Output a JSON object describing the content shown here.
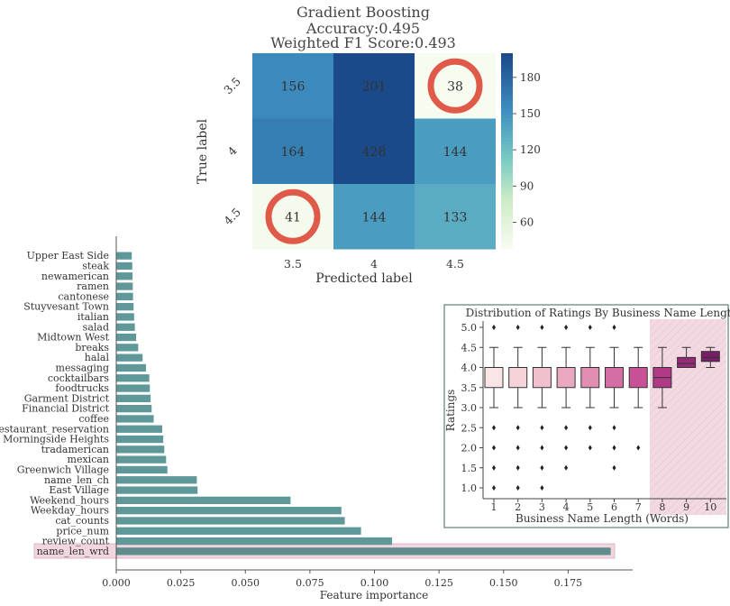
{
  "chart_data": [
    {
      "type": "heatmap",
      "title_lines": [
        "Gradient Boosting",
        "Accuracy:0.495",
        "Weighted F1 Score:0.493"
      ],
      "xlabel": "Predicted label",
      "ylabel": "True label",
      "x_categories": [
        "3.5",
        "4",
        "4.5"
      ],
      "y_categories": [
        "3.5",
        "4",
        "4.5"
      ],
      "values": [
        [
          156,
          201,
          38
        ],
        [
          164,
          428,
          144
        ],
        [
          41,
          144,
          133
        ]
      ],
      "colorbar_ticks": [
        180,
        150,
        120,
        90,
        60
      ],
      "colorbar_range": [
        38,
        200
      ],
      "highlighted_cells": [
        [
          0,
          2
        ],
        [
          2,
          0
        ]
      ],
      "colors": {
        "low": "#f7fcf0",
        "mid": "#7bccc4",
        "high": "#1b4a8a",
        "highlight": "#e05a4a"
      }
    },
    {
      "type": "bar",
      "orientation": "horizontal",
      "xlabel": "Feature importance",
      "xlim": [
        0,
        0.2
      ],
      "xticks": [
        "0.000",
        "0.025",
        "0.050",
        "0.075",
        "0.100",
        "0.125",
        "0.150",
        "0.175"
      ],
      "categories": [
        "Upper East Side",
        "steak",
        "newamerican",
        "ramen",
        "cantonese",
        "Stuyvesant Town",
        "italian",
        "salad",
        "Midtown West",
        "breaks",
        "halal",
        "messaging",
        "cocktailbars",
        "foodtrucks",
        "Garment District",
        "Financial District",
        "coffee",
        "restaurant_reservation",
        "Morningside Heights",
        "tradamerican",
        "mexican",
        "Greenwich Village",
        "name_len_ch",
        "East Village",
        "Weekend_hours",
        "Weekday_hours",
        "cat_counts",
        "price_num",
        "review_count",
        "name_len_wrd"
      ],
      "values": [
        0.006,
        0.0062,
        0.0063,
        0.0064,
        0.0065,
        0.0067,
        0.0069,
        0.0072,
        0.0077,
        0.0085,
        0.0102,
        0.0115,
        0.0128,
        0.013,
        0.0133,
        0.0137,
        0.0145,
        0.0178,
        0.0182,
        0.0186,
        0.0193,
        0.0198,
        0.0312,
        0.0315,
        0.0675,
        0.0872,
        0.0885,
        0.0948,
        0.1068,
        0.1915
      ],
      "highlighted_category": "name_len_wrd",
      "colors": {
        "bar": "#5f9898",
        "highlight_bar": "#5f8c8c",
        "highlight_band": "#f1d6e0"
      }
    },
    {
      "type": "box",
      "title": "Distribution of Ratings By Business Name Length",
      "xlabel": "Business Name Length (Words)",
      "ylabel": "Ratings",
      "categories": [
        "1",
        "2",
        "3",
        "4",
        "5",
        "6",
        "7",
        "8",
        "9",
        "10"
      ],
      "yticks": [
        "1.0",
        "1.5",
        "2.0",
        "2.5",
        "3.0",
        "3.5",
        "4.0",
        "4.5",
        "5.0"
      ],
      "ylim": [
        0.85,
        5.15
      ],
      "boxes": [
        {
          "q1": 3.5,
          "median": 4.0,
          "q3": 4.0,
          "whisker_low": 3.0,
          "whisker_high": 4.5,
          "outliers": [
            5.0,
            2.5,
            2.0,
            1.5,
            1.0
          ]
        },
        {
          "q1": 3.5,
          "median": 4.0,
          "q3": 4.0,
          "whisker_low": 3.0,
          "whisker_high": 4.5,
          "outliers": [
            5.0,
            2.5,
            2.0,
            1.5,
            1.0
          ]
        },
        {
          "q1": 3.5,
          "median": 4.0,
          "q3": 4.0,
          "whisker_low": 3.0,
          "whisker_high": 4.5,
          "outliers": [
            5.0,
            2.5,
            2.0,
            1.5,
            1.0
          ]
        },
        {
          "q1": 3.5,
          "median": 4.0,
          "q3": 4.0,
          "whisker_low": 3.0,
          "whisker_high": 4.5,
          "outliers": [
            5.0,
            2.5,
            2.0,
            1.5
          ]
        },
        {
          "q1": 3.5,
          "median": 4.0,
          "q3": 4.0,
          "whisker_low": 3.0,
          "whisker_high": 4.5,
          "outliers": [
            5.0,
            2.5,
            2.0
          ]
        },
        {
          "q1": 3.5,
          "median": 4.0,
          "q3": 4.0,
          "whisker_low": 3.0,
          "whisker_high": 4.5,
          "outliers": [
            5.0,
            2.5,
            2.0,
            1.5
          ]
        },
        {
          "q1": 3.5,
          "median": 4.0,
          "q3": 4.0,
          "whisker_low": 3.0,
          "whisker_high": 4.5,
          "outliers": [
            2.0
          ]
        },
        {
          "q1": 3.5,
          "median": 3.75,
          "q3": 4.0,
          "whisker_low": 3.0,
          "whisker_high": 4.5,
          "outliers": []
        },
        {
          "q1": 4.0,
          "median": 4.1,
          "q3": 4.25,
          "whisker_low": 4.0,
          "whisker_high": 4.5,
          "outliers": []
        },
        {
          "q1": 4.15,
          "median": 4.25,
          "q3": 4.4,
          "whisker_low": 4.0,
          "whisker_high": 4.5,
          "outliers": []
        }
      ],
      "highlighted_categories": [
        "8",
        "9",
        "10"
      ],
      "colors": {
        "boxes": [
          "#f9e4e6",
          "#f5d3d9",
          "#f0c0ce",
          "#e9a8c0",
          "#e08db2",
          "#d56fa3",
          "#c85195",
          "#b13a86",
          "#952a78",
          "#7a1d68"
        ],
        "highlight_band": "#f3d9e2",
        "frame": "#5f7f73"
      }
    }
  ]
}
